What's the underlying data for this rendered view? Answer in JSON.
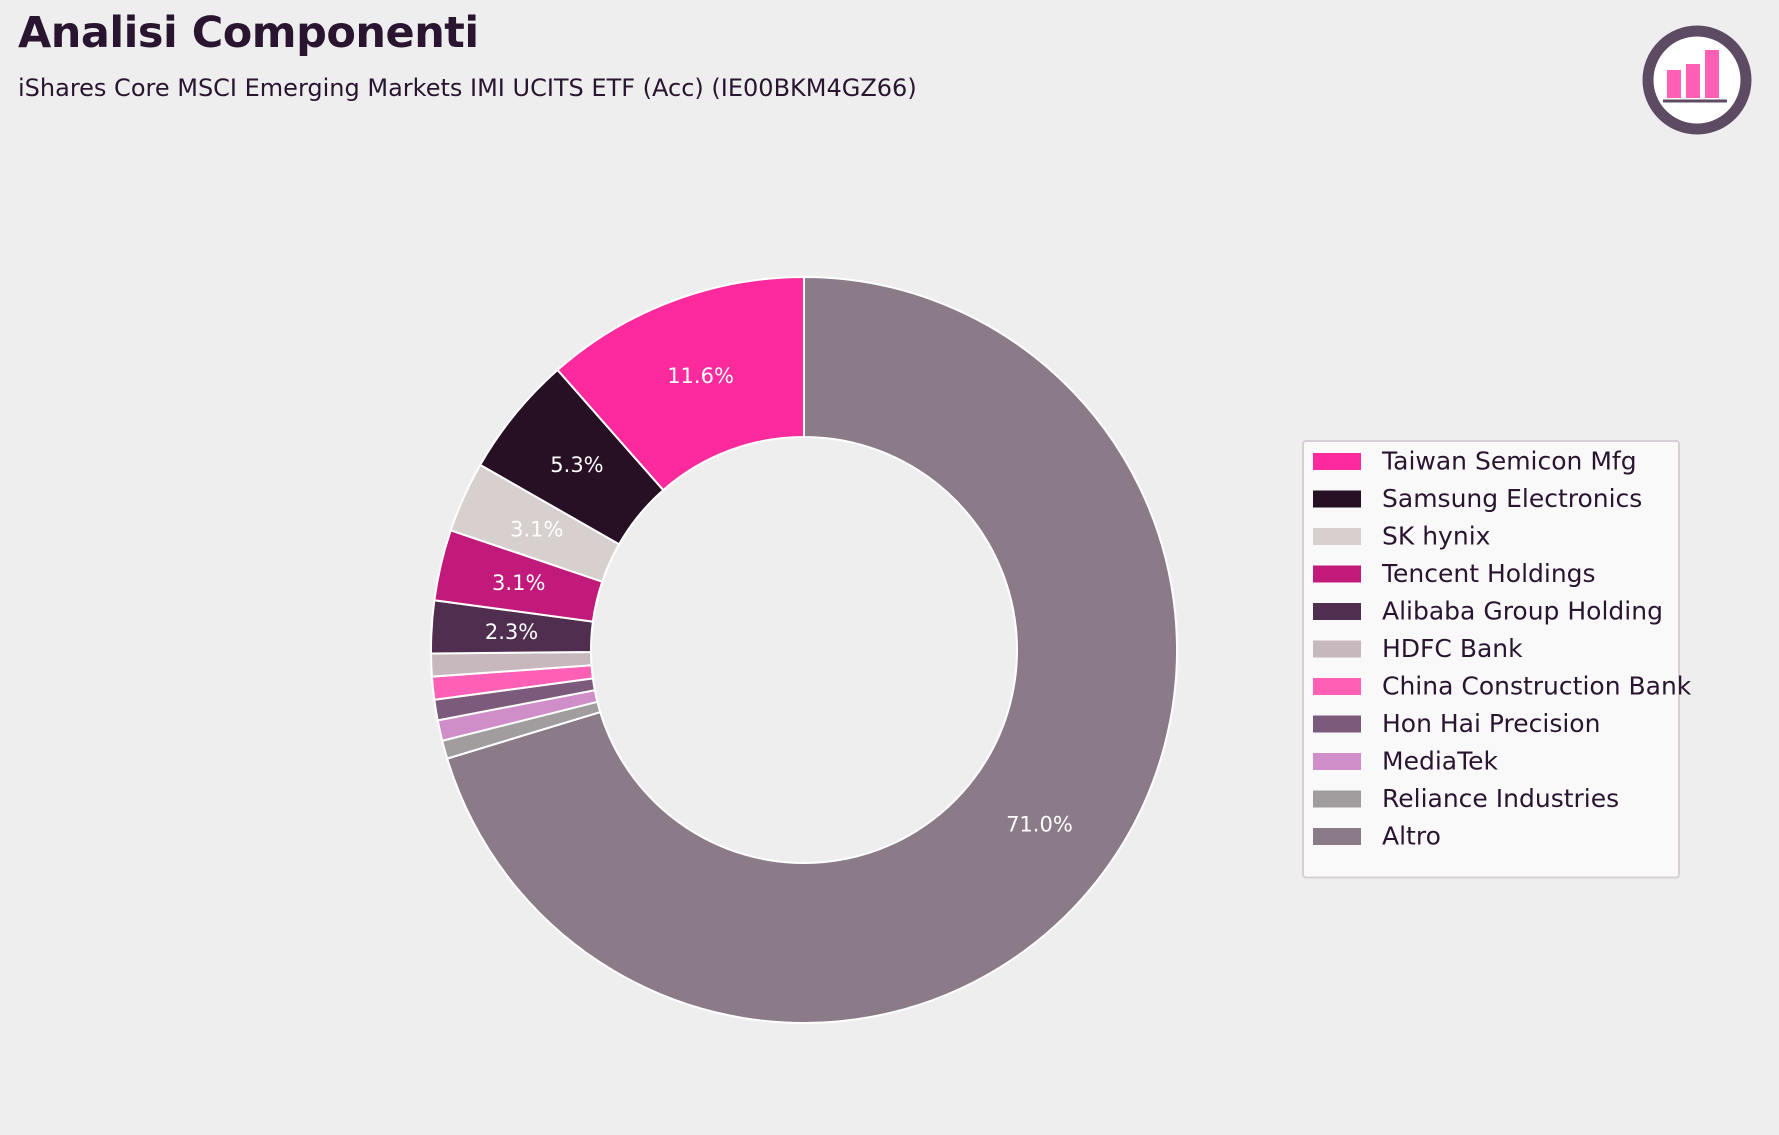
{
  "header": {
    "title": "Analisi Componenti",
    "subtitle": "iShares Core MSCI Emerging Markets IMI UCITS ETF (Acc) (IE00BKM4GZ66)"
  },
  "logo": {
    "icon": "bar-chart-logo-icon",
    "ring_color": "#5d4b63",
    "bar_color": "#ff5fb4"
  },
  "chart_data": {
    "type": "pie",
    "style": "donut",
    "start": "top, clockwise from Altro",
    "legend_position": "right",
    "slices": [
      {
        "name": "Altro",
        "value": 71.0,
        "label": "71.0%",
        "color": "#8b7a88"
      },
      {
        "name": "Reliance Industries",
        "value": 0.8,
        "label": "",
        "color": "#a19c9e"
      },
      {
        "name": "MediaTek",
        "value": 0.9,
        "label": "",
        "color": "#d08ec9"
      },
      {
        "name": "Hon Hai Precision",
        "value": 0.9,
        "label": "",
        "color": "#7b5a7c"
      },
      {
        "name": "China Construction Bank",
        "value": 1.0,
        "label": "",
        "color": "#ff5fb4"
      },
      {
        "name": "HDFC Bank",
        "value": 1.0,
        "label": "",
        "color": "#c7b8be"
      },
      {
        "name": "Alibaba Group Holding",
        "value": 2.3,
        "label": "2.3%",
        "color": "#502e4f"
      },
      {
        "name": "Tencent Holdings",
        "value": 3.1,
        "label": "3.1%",
        "color": "#c21a7a"
      },
      {
        "name": "SK hynix",
        "value": 3.1,
        "label": "3.1%",
        "color": "#d8cfcf"
      },
      {
        "name": "Samsung Electronics",
        "value": 5.3,
        "label": "5.3%",
        "color": "#270f24"
      },
      {
        "name": "Taiwan Semicon Mfg",
        "value": 11.6,
        "label": "11.6%",
        "color": "#fc2a9d"
      }
    ],
    "legend": [
      {
        "name": "Taiwan Semicon Mfg",
        "color": "#fc2a9d"
      },
      {
        "name": "Samsung Electronics",
        "color": "#270f24"
      },
      {
        "name": "SK hynix",
        "color": "#d8cfcf"
      },
      {
        "name": "Tencent Holdings",
        "color": "#c21a7a"
      },
      {
        "name": "Alibaba Group Holding",
        "color": "#502e4f"
      },
      {
        "name": "HDFC Bank",
        "color": "#c7b8be"
      },
      {
        "name": "China Construction Bank",
        "color": "#ff5fb4"
      },
      {
        "name": "Hon Hai Precision",
        "color": "#7b5a7c"
      },
      {
        "name": "MediaTek",
        "color": "#d08ec9"
      },
      {
        "name": "Reliance Industries",
        "color": "#a19c9e"
      },
      {
        "name": "Altro",
        "color": "#8b7a88"
      }
    ]
  }
}
